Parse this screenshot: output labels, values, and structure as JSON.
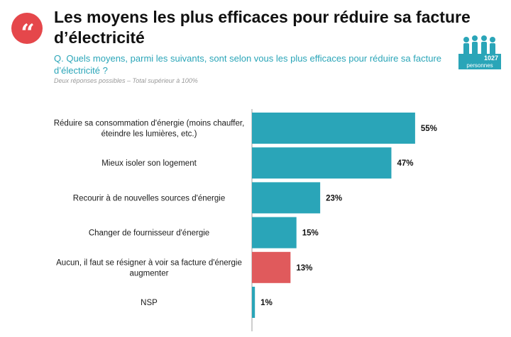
{
  "header": {
    "title": "Les moyens les plus efficaces pour réduire sa facture d’électricité",
    "question": "Q. Quels moyens, parmi les suivants, sont selon vous les plus efficaces pour réduire sa facture d’électricité ?",
    "note": "Deux réponses possibles – Total supérieur à 100%",
    "quote_icon": "quote-icon"
  },
  "sample": {
    "count": "1027",
    "label": "personnes",
    "icon": "people-icon"
  },
  "colors": {
    "accent": "#2aa5b8",
    "negative": "#e05a5c",
    "badge": "#e5474b"
  },
  "chart_data": {
    "type": "bar",
    "orientation": "horizontal",
    "title": "",
    "xlabel": "",
    "ylabel": "",
    "xlim": [
      0,
      60
    ],
    "grid": false,
    "categories": [
      [
        "Réduire sa consommation d'énergie (moins chauffer,",
        "éteindre les lumières, etc.)"
      ],
      [
        "Mieux isoler son logement"
      ],
      [
        "Recourir à de nouvelles sources d'énergie"
      ],
      [
        "Changer de fournisseur d'énergie"
      ],
      [
        "Aucun, il faut se résigner à voir sa facture d'énergie",
        "augmenter"
      ],
      [
        "NSP"
      ]
    ],
    "values": [
      55,
      47,
      23,
      15,
      13,
      1
    ],
    "value_labels": [
      "55%",
      "47%",
      "23%",
      "15%",
      "13%",
      "1%"
    ],
    "bar_colors": [
      "#2aa5b8",
      "#2aa5b8",
      "#2aa5b8",
      "#2aa5b8",
      "#e05a5c",
      "#2aa5b8"
    ]
  }
}
